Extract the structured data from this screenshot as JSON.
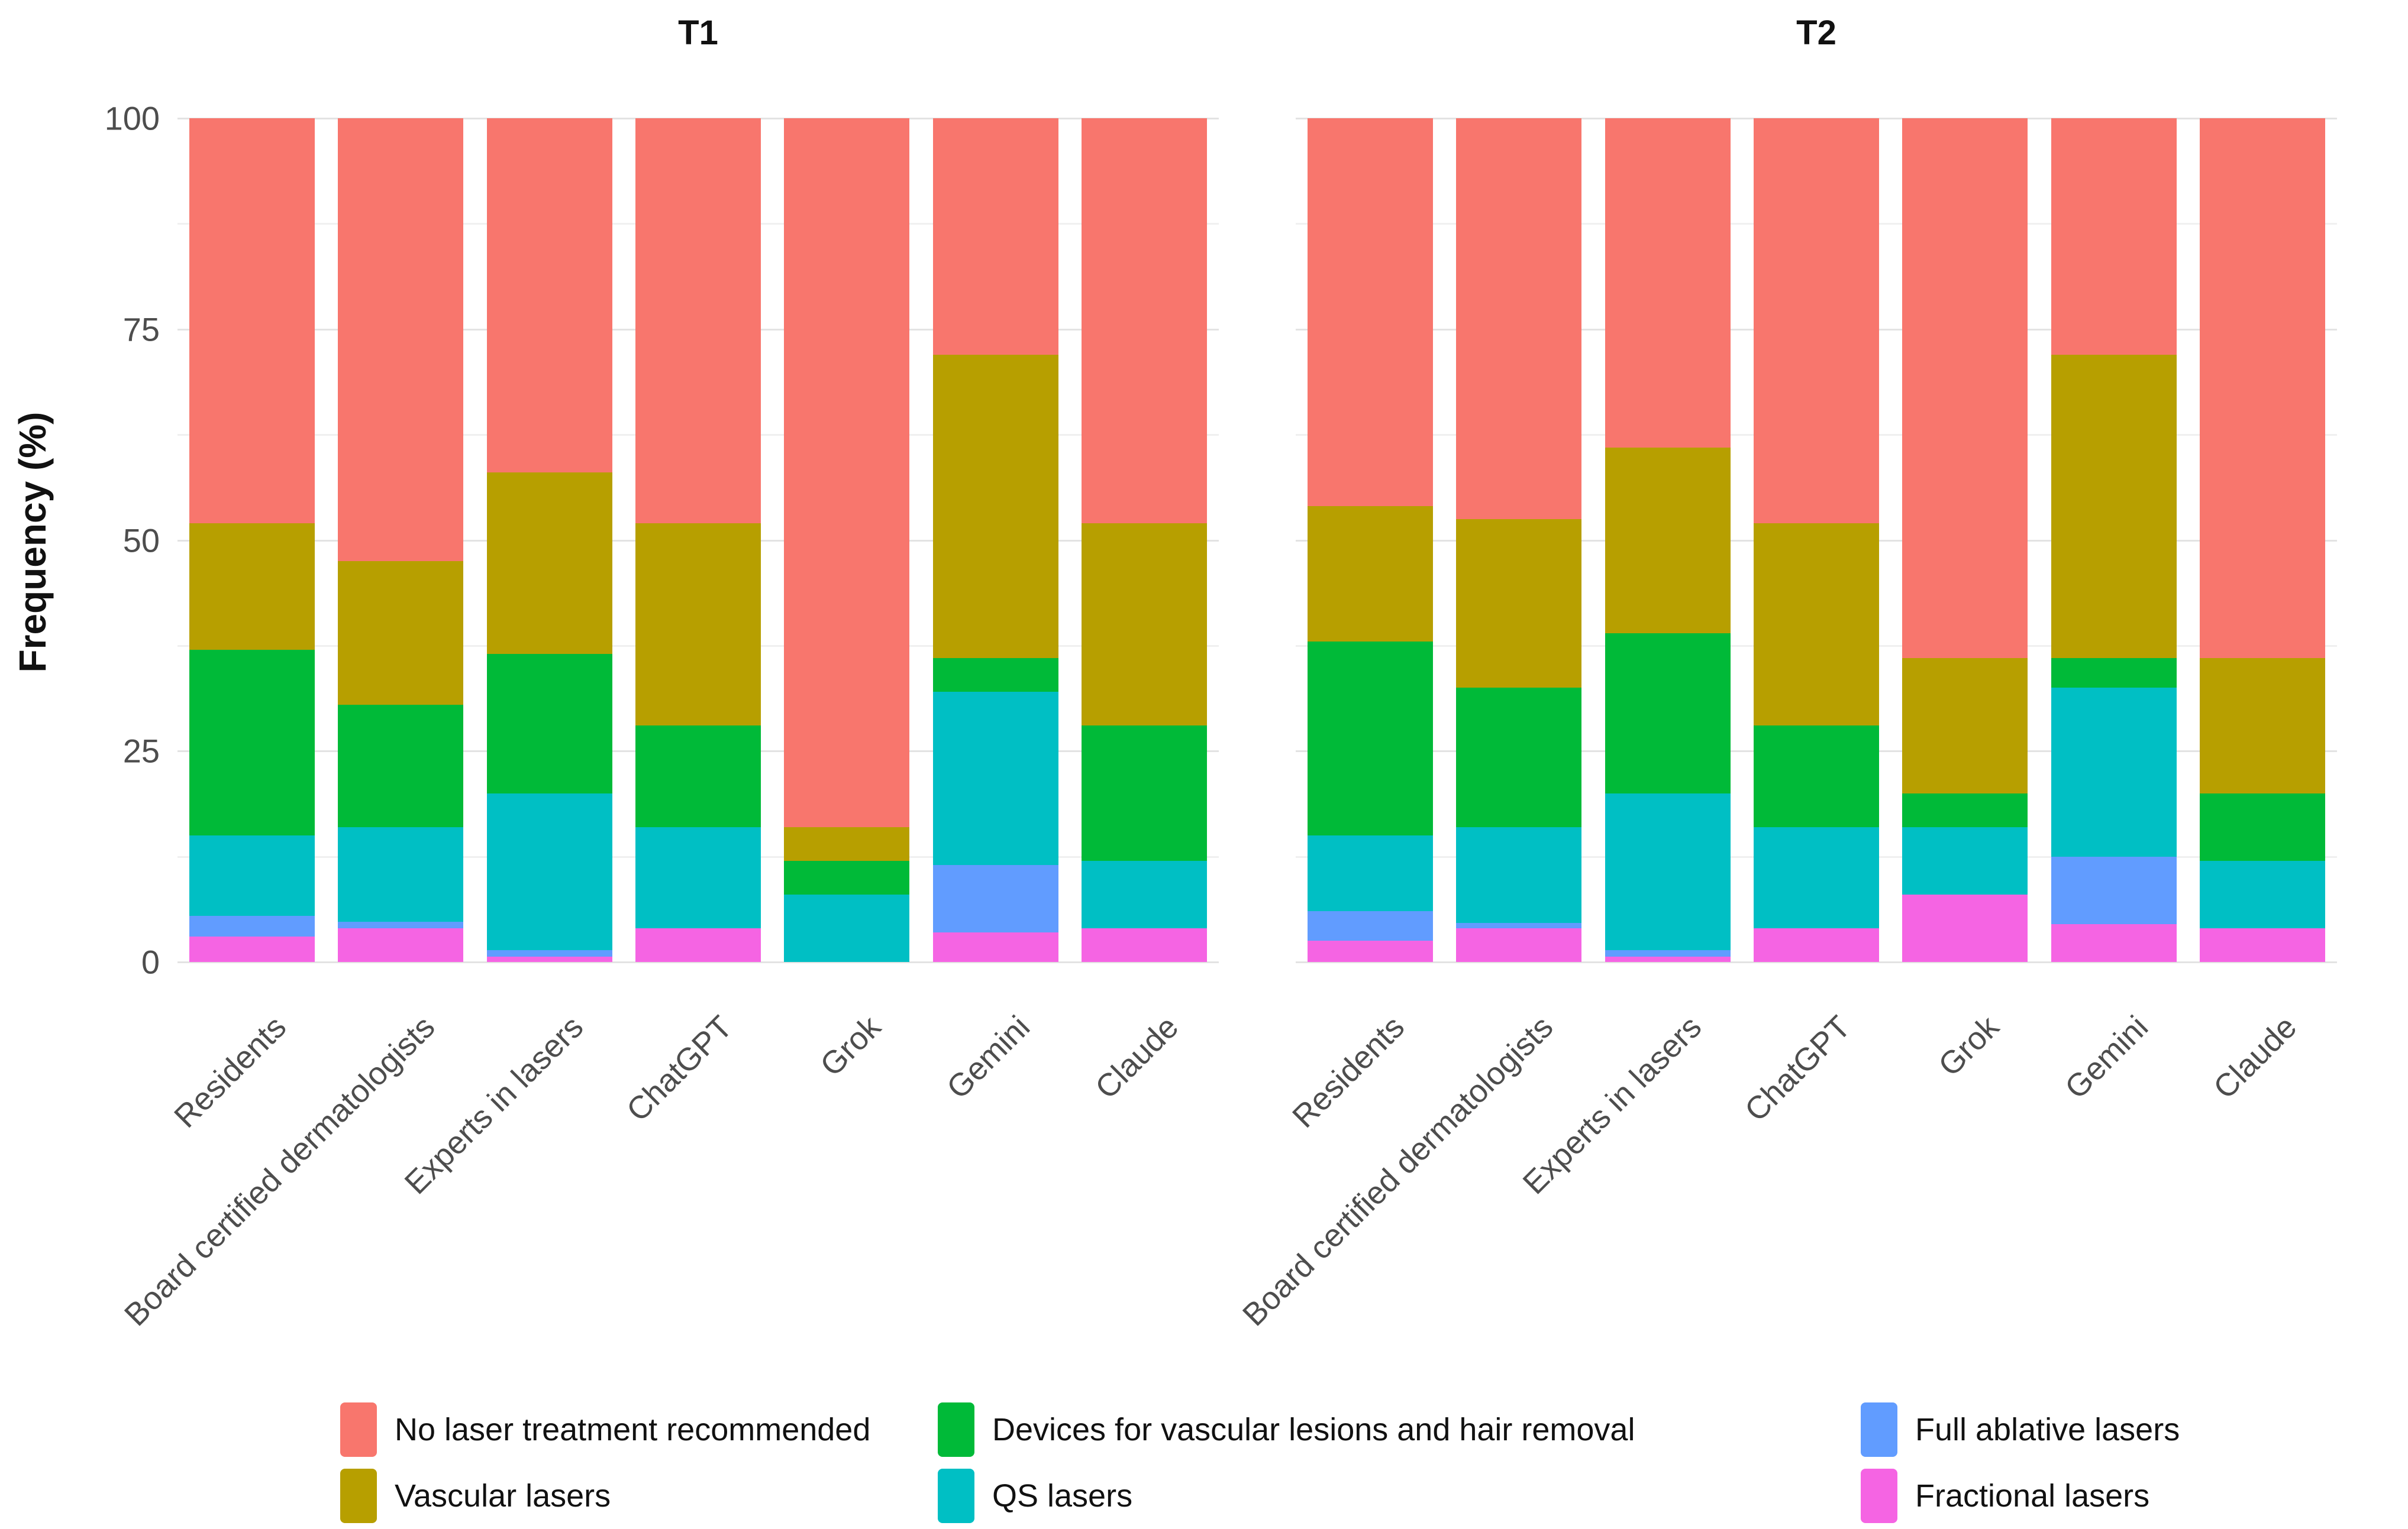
{
  "y_axis": {
    "title": "Frequency (%)",
    "ticks": [
      0,
      25,
      50,
      75,
      100
    ],
    "minor_gridlines": [
      12.5,
      37.5,
      62.5,
      87.5
    ]
  },
  "categories": [
    "Residents",
    "Board certified dermatologists",
    "Experts in lasers",
    "ChatGPT",
    "Grok",
    "Gemini",
    "Claude"
  ],
  "colors": {
    "No laser treatment recommended": "#F8766D",
    "Vascular lasers": "#B79F00",
    "Devices for vascular lesions and hair removal": "#00BA38",
    "QS lasers": "#00BFC4",
    "Full ablative lasers": "#619CFF",
    "Fractional lasers": "#F564E3"
  },
  "chart_data": {
    "type": "bar",
    "stacked": true,
    "units": "percent",
    "ylabel": "Frequency (%)",
    "ylim": [
      0,
      100
    ],
    "grid": "on",
    "legend_position": "bottom",
    "categories": [
      "Residents",
      "Board certified dermatologists",
      "Experts in lasers",
      "ChatGPT",
      "Grok",
      "Gemini",
      "Claude"
    ],
    "stack_order_bottom_to_top": [
      "Fractional lasers",
      "Full ablative lasers",
      "QS lasers",
      "Devices for vascular lesions and hair removal",
      "Vascular lasers",
      "No laser treatment recommended"
    ],
    "facets": [
      {
        "label": "T1",
        "series": [
          {
            "name": "Fractional lasers",
            "values": [
              3,
              4,
              0.6,
              4,
              0,
              3.5,
              4
            ]
          },
          {
            "name": "Full ablative lasers",
            "values": [
              2.5,
              0.8,
              0.8,
              0,
              0,
              8,
              0
            ]
          },
          {
            "name": "QS lasers",
            "values": [
              9.5,
              11.2,
              18.6,
              12,
              8,
              20.5,
              8
            ]
          },
          {
            "name": "Devices for vascular lesions and hair removal",
            "values": [
              22,
              14.5,
              16.5,
              12,
              4,
              4,
              16
            ]
          },
          {
            "name": "Vascular lasers",
            "values": [
              15,
              17,
              21.5,
              24,
              4,
              36,
              24
            ]
          },
          {
            "name": "No laser treatment recommended",
            "values": [
              48,
              52.5,
              42,
              48,
              84,
              28,
              48
            ]
          }
        ]
      },
      {
        "label": "T2",
        "series": [
          {
            "name": "Fractional lasers",
            "values": [
              2.5,
              4,
              0.6,
              4,
              8,
              4.5,
              4
            ]
          },
          {
            "name": "Full ablative lasers",
            "values": [
              3.5,
              0.6,
              0.8,
              0,
              0,
              8,
              0
            ]
          },
          {
            "name": "QS lasers",
            "values": [
              9,
              11.4,
              18.6,
              12,
              8,
              20,
              8
            ]
          },
          {
            "name": "Devices for vascular lesions and hair removal",
            "values": [
              23,
              16.5,
              19,
              12,
              4,
              3.5,
              8
            ]
          },
          {
            "name": "Vascular lasers",
            "values": [
              16,
              20,
              22,
              24,
              16,
              36,
              16
            ]
          },
          {
            "name": "No laser treatment recommended",
            "values": [
              46,
              47.5,
              39,
              48,
              64,
              28,
              64
            ]
          }
        ]
      }
    ]
  },
  "legend": {
    "columns": [
      {
        "items": [
          {
            "label": "No laser treatment recommended",
            "color": "#F8766D"
          },
          {
            "label": "Vascular lasers",
            "color": "#B79F00"
          }
        ]
      },
      {
        "items": [
          {
            "label": "Devices for vascular lesions and hair removal",
            "color": "#00BA38"
          },
          {
            "label": "QS lasers",
            "color": "#00BFC4"
          }
        ]
      },
      {
        "items": [
          {
            "label": "Full ablative lasers",
            "color": "#619CFF"
          },
          {
            "label": "Fractional lasers",
            "color": "#F564E3"
          }
        ]
      }
    ]
  }
}
